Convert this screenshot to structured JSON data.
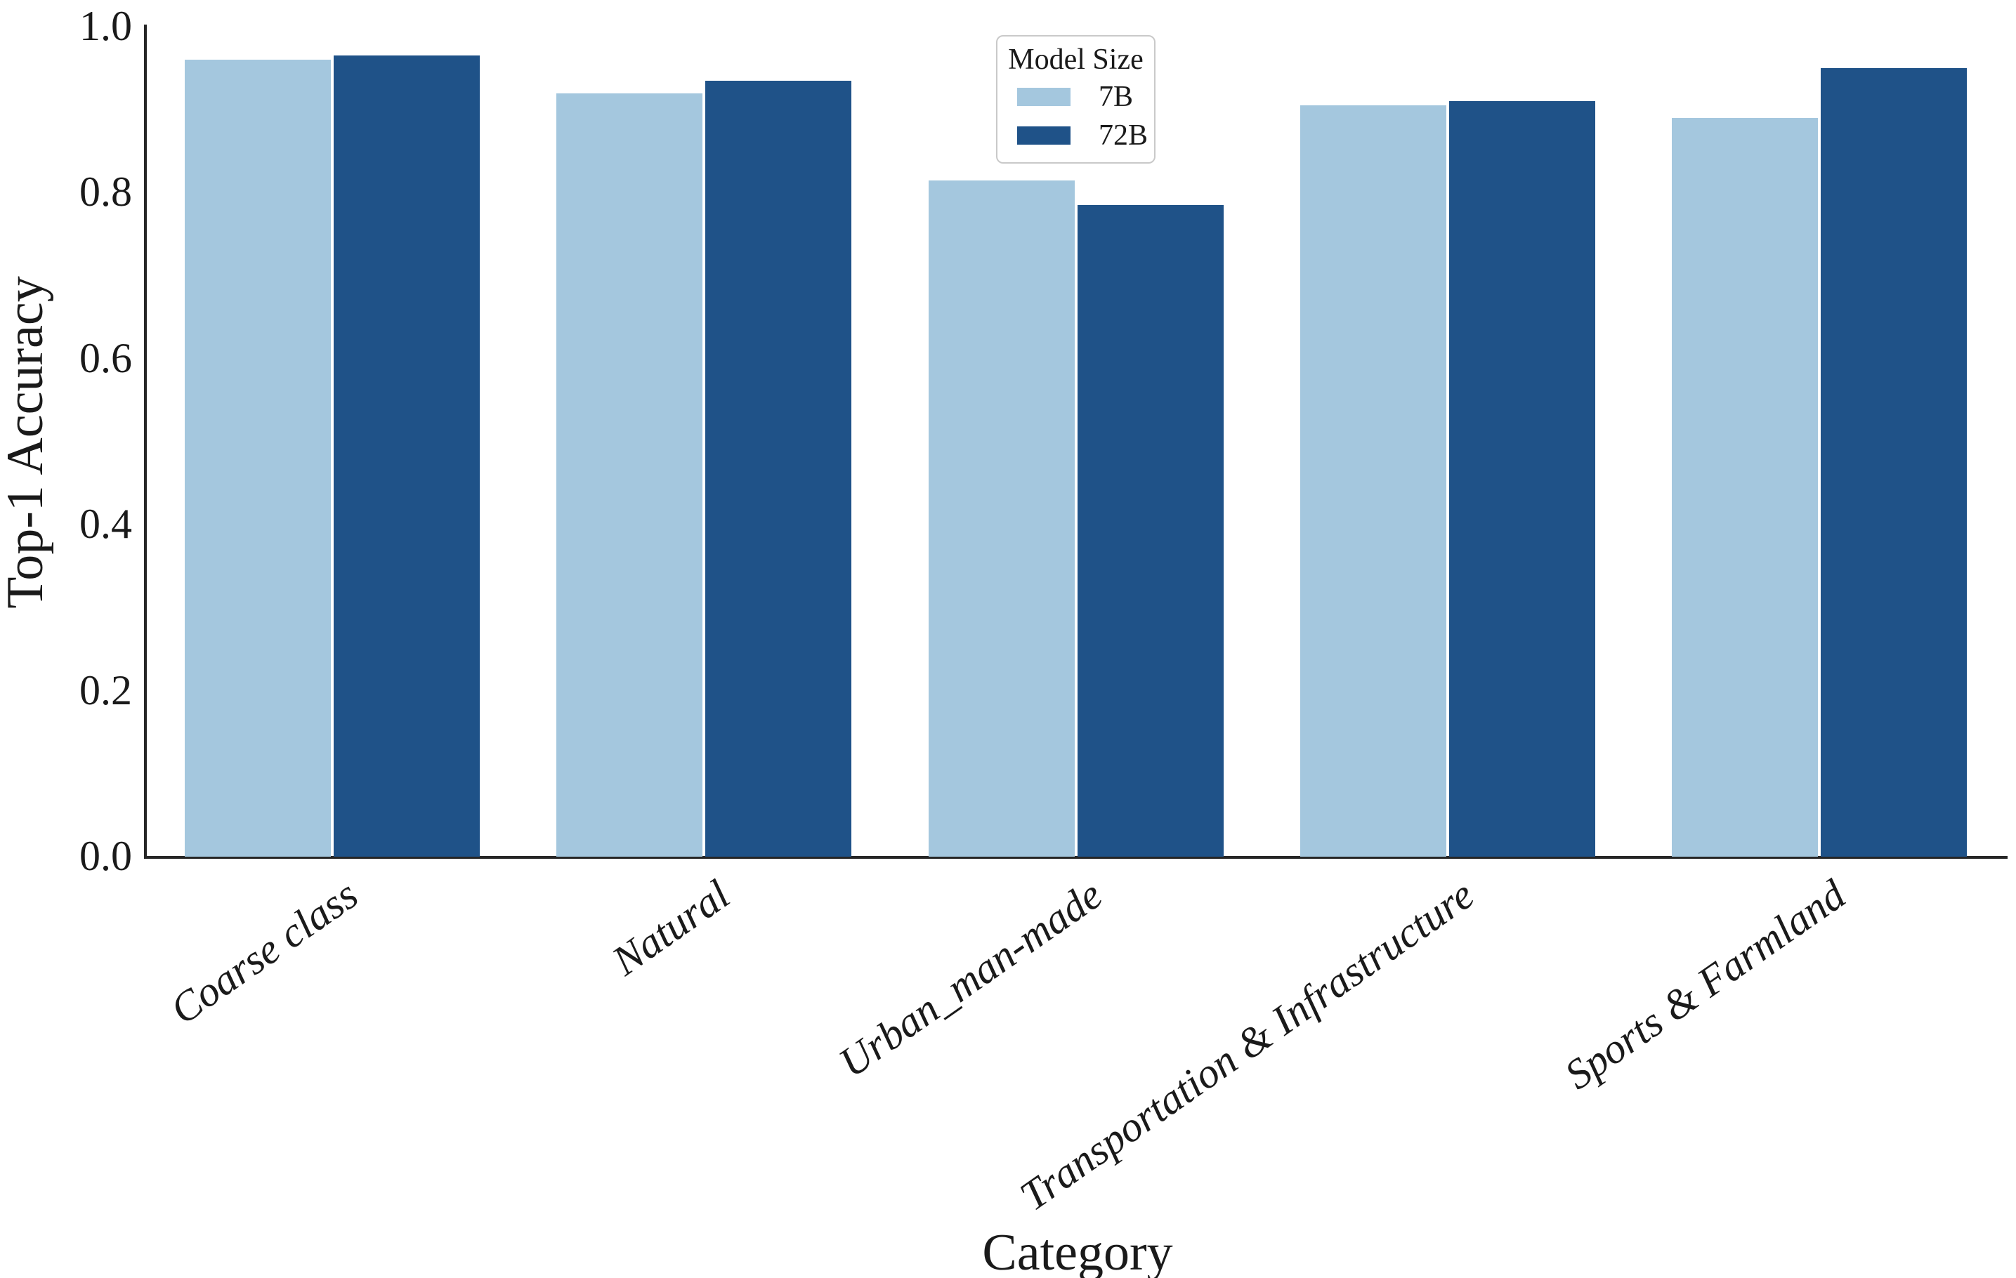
{
  "chart_data": {
    "type": "bar",
    "title": "",
    "xlabel": "Category",
    "ylabel": "Top-1 Accuracy",
    "categories": [
      "Coarse class",
      "Natural",
      "Urban_man-made",
      "Transportation & Infrastructure",
      "Sports & Farmland"
    ],
    "series": [
      {
        "name": "7B",
        "color": "#a4c7de",
        "values": [
          0.96,
          0.92,
          0.815,
          0.905,
          0.89
        ]
      },
      {
        "name": "72B",
        "color": "#1f5288",
        "values": [
          0.965,
          0.935,
          0.785,
          0.91,
          0.95
        ]
      }
    ],
    "ylim": [
      0.0,
      1.0
    ],
    "yticks": {
      "labels": [
        "1.0",
        "0.8",
        "0.6",
        "0.4",
        "0.2",
        "0.0"
      ],
      "values": [
        1.0,
        0.8,
        0.6,
        0.4,
        0.2,
        0.0
      ]
    },
    "legend": {
      "title": "Model Size",
      "position": "upper center"
    },
    "grid": false,
    "axis_color": "#262626",
    "text_color": "#1a1a1a",
    "background": "#ffffff"
  }
}
